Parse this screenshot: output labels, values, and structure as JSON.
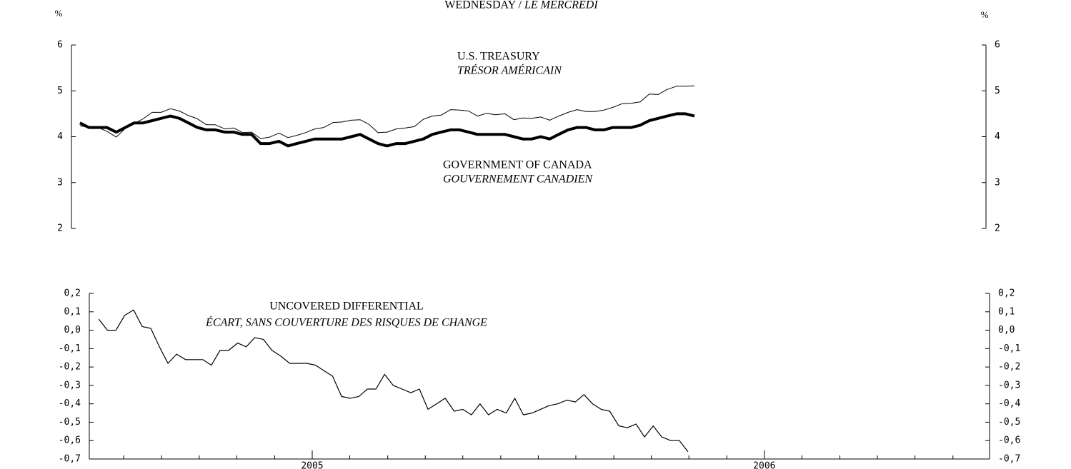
{
  "chart_data": [
    {
      "type": "line",
      "title": "WEDNESDAY /",
      "title_italic": "LE MERCREDI",
      "ylabel": "%",
      "y2label": "%",
      "x": [
        2004.528,
        2004.547,
        2004.566,
        2004.585,
        2004.605,
        2004.624,
        2004.643,
        2004.662,
        2004.681,
        2004.7,
        2004.72,
        2004.739,
        2004.758,
        2004.777,
        2004.796,
        2004.815,
        2004.835,
        2004.854,
        2004.873,
        2004.892,
        2004.911,
        2004.93,
        2004.95,
        2004.969,
        2004.988,
        2005.007,
        2005.026,
        2005.045,
        2005.065,
        2005.084,
        2005.103,
        2005.122,
        2005.141,
        2005.16,
        2005.179,
        2005.199,
        2005.218,
        2005.237,
        2005.256,
        2005.275,
        2005.294,
        2005.314,
        2005.333,
        2005.352,
        2005.371,
        2005.39,
        2005.409,
        2005.429,
        2005.448,
        2005.467,
        2005.486,
        2005.505,
        2005.524,
        2005.543,
        2005.563,
        2005.582,
        2005.601,
        2005.62,
        2005.639,
        2005.658,
        2005.678,
        2005.697,
        2005.716,
        2005.735,
        2005.754,
        2005.773,
        2005.793,
        2005.812,
        2005.831
      ],
      "xlim": [
        2004.51,
        2006.449
      ],
      "ylim": [
        2,
        6
      ],
      "yticks": [
        2,
        3,
        4,
        5,
        6
      ],
      "y2lim": [
        2,
        6
      ],
      "y2ticks": [
        2,
        3,
        4,
        5,
        6
      ],
      "series": [
        {
          "name": "U.S. TREASURY",
          "color": "#000000",
          "linewidth": 1,
          "values": [
            4.24,
            4.2,
            4.2,
            4.12,
            3.99,
            4.18,
            4.29,
            4.39,
            4.53,
            4.53,
            4.61,
            4.56,
            4.46,
            4.39,
            4.26,
            4.26,
            4.17,
            4.19,
            4.09,
            4.1,
            3.96,
            3.99,
            4.08,
            3.98,
            4.03,
            4.09,
            4.17,
            4.2,
            4.31,
            4.32,
            4.36,
            4.37,
            4.27,
            4.09,
            4.1,
            4.17,
            4.19,
            4.22,
            4.38,
            4.45,
            4.47,
            4.59,
            4.58,
            4.56,
            4.45,
            4.51,
            4.48,
            4.5,
            4.37,
            4.41,
            4.4,
            4.43,
            4.36,
            4.45,
            4.53,
            4.59,
            4.55,
            4.55,
            4.58,
            4.64,
            4.72,
            4.73,
            4.76,
            4.93,
            4.92,
            5.03,
            5.1,
            5.1,
            5.11
          ]
        },
        {
          "name": "GOVERNMENT OF CANADA",
          "color": "#000000",
          "linewidth": 4,
          "values": [
            4.3,
            4.2,
            4.2,
            4.2,
            4.1,
            4.2,
            4.3,
            4.3,
            4.35,
            4.4,
            4.45,
            4.4,
            4.3,
            4.2,
            4.15,
            4.15,
            4.1,
            4.1,
            4.05,
            4.05,
            3.85,
            3.85,
            3.9,
            3.8,
            3.85,
            3.9,
            3.95,
            3.95,
            3.95,
            3.95,
            4.0,
            4.05,
            3.95,
            3.85,
            3.8,
            3.85,
            3.85,
            3.9,
            3.95,
            4.05,
            4.1,
            4.15,
            4.15,
            4.1,
            4.05,
            4.05,
            4.05,
            4.05,
            4.0,
            3.95,
            3.95,
            4.0,
            3.95,
            4.05,
            4.15,
            4.2,
            4.2,
            4.15,
            4.15,
            4.2,
            4.2,
            4.2,
            4.25,
            4.35,
            4.4,
            4.45,
            4.5,
            4.5,
            4.45
          ]
        }
      ],
      "annotations": [
        "TRÉSOR AMÉRICAIN",
        "GOUVERNEMENT CANADIEN"
      ]
    },
    {
      "type": "line",
      "x": [
        2004.528,
        2004.547,
        2004.566,
        2004.585,
        2004.605,
        2004.624,
        2004.643,
        2004.662,
        2004.681,
        2004.7,
        2004.72,
        2004.739,
        2004.758,
        2004.777,
        2004.796,
        2004.815,
        2004.835,
        2004.854,
        2004.873,
        2004.892,
        2004.911,
        2004.93,
        2004.95,
        2004.969,
        2004.988,
        2005.007,
        2005.026,
        2005.045,
        2005.065,
        2005.084,
        2005.103,
        2005.122,
        2005.141,
        2005.16,
        2005.179,
        2005.199,
        2005.218,
        2005.237,
        2005.256,
        2005.275,
        2005.294,
        2005.314,
        2005.333,
        2005.352,
        2005.371,
        2005.39,
        2005.409,
        2005.429,
        2005.448,
        2005.467,
        2005.486,
        2005.505,
        2005.524,
        2005.543,
        2005.563,
        2005.582,
        2005.601,
        2005.62,
        2005.639,
        2005.658,
        2005.678,
        2005.697,
        2005.716,
        2005.735,
        2005.754,
        2005.773,
        2005.793,
        2005.812,
        2005.831
      ],
      "xlim": [
        2004.507,
        2006.498
      ],
      "xticks": [
        2005,
        2006
      ],
      "xminorticks": [
        2004.583,
        2004.667,
        2004.75,
        2004.833,
        2004.917,
        2005.083,
        2005.167,
        2005.25,
        2005.333,
        2005.417,
        2005.5,
        2005.583,
        2005.667,
        2005.75,
        2005.833,
        2005.917,
        2006.083,
        2006.167,
        2006.25,
        2006.333,
        2006.417
      ],
      "ylim": [
        -0.7,
        0.2
      ],
      "yticks": [
        {
          "value": -0.7,
          "label": "-0,7"
        },
        {
          "value": -0.6,
          "label": "-0,6"
        },
        {
          "value": -0.5,
          "label": "-0,5"
        },
        {
          "value": -0.4,
          "label": "-0,4"
        },
        {
          "value": -0.3,
          "label": "-0,3"
        },
        {
          "value": -0.2,
          "label": "-0,2"
        },
        {
          "value": -0.1,
          "label": "-0,1"
        },
        {
          "value": 0,
          "label": "0,0"
        },
        {
          "value": 0.1,
          "label": "0,1"
        },
        {
          "value": 0.2,
          "label": "0,2"
        }
      ],
      "y2lim": [
        -0.7,
        0.2
      ],
      "y2ticks": [
        {
          "value": -0.7,
          "label": "-0,7"
        },
        {
          "value": -0.6,
          "label": "-0,6"
        },
        {
          "value": -0.5,
          "label": "-0,5"
        },
        {
          "value": -0.4,
          "label": "-0,4"
        },
        {
          "value": -0.3,
          "label": "-0,3"
        },
        {
          "value": -0.2,
          "label": "-0,2"
        },
        {
          "value": -0.1,
          "label": "-0,1"
        },
        {
          "value": 0,
          "label": "0,0"
        },
        {
          "value": 0.1,
          "label": "0,1"
        },
        {
          "value": 0.2,
          "label": "0,2"
        }
      ],
      "series": [
        {
          "name": "UNCOVERED DIFFERENTIAL",
          "color": "#000000",
          "linewidth": 1.2,
          "values": [
            0.06,
            0,
            0,
            0.08,
            0.11,
            0.02,
            0.01,
            -0.09,
            -0.18,
            -0.13,
            -0.16,
            -0.16,
            -0.16,
            -0.19,
            -0.11,
            -0.11,
            -0.07,
            -0.09,
            -0.04,
            -0.05,
            -0.11,
            -0.14,
            -0.18,
            -0.18,
            -0.18,
            -0.19,
            -0.22,
            -0.25,
            -0.36,
            -0.37,
            -0.36,
            -0.32,
            -0.32,
            -0.24,
            -0.3,
            -0.32,
            -0.34,
            -0.32,
            -0.43,
            -0.4,
            -0.37,
            -0.44,
            -0.43,
            -0.46,
            -0.4,
            -0.46,
            -0.43,
            -0.45,
            -0.37,
            -0.46,
            -0.45,
            -0.43,
            -0.41,
            -0.4,
            -0.38,
            -0.39,
            -0.35,
            -0.4,
            -0.43,
            -0.44,
            -0.52,
            -0.53,
            -0.51,
            -0.58,
            -0.52,
            -0.58,
            -0.6,
            -0.6,
            -0.66
          ]
        }
      ],
      "annotations": [
        "ÉCART, SANS COUVERTURE DES RISQUES DE CHANGE"
      ]
    }
  ]
}
